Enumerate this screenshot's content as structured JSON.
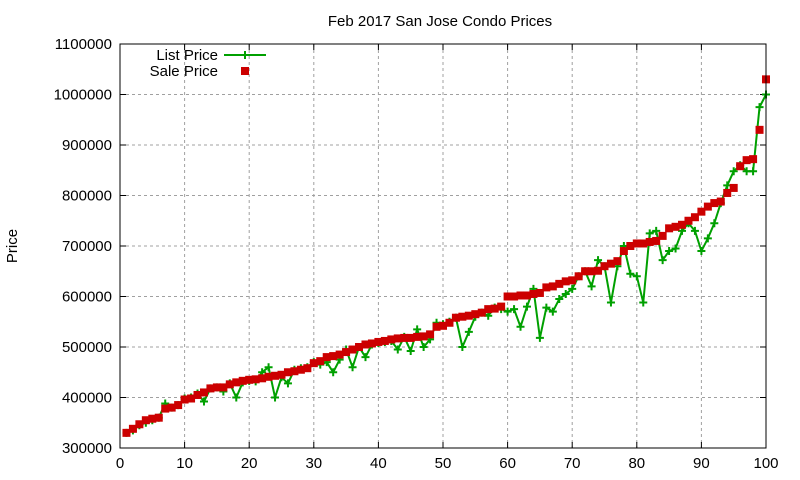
{
  "chart_data": {
    "type": "line",
    "title": "Feb 2017 San Jose Condo Prices",
    "xlabel": "",
    "ylabel": "Price",
    "xlim": [
      0,
      100
    ],
    "ylim": [
      300000,
      1100000
    ],
    "xticks": [
      0,
      10,
      20,
      30,
      40,
      50,
      60,
      70,
      80,
      90,
      100
    ],
    "yticks": [
      300000,
      400000,
      500000,
      600000,
      700000,
      800000,
      900000,
      1000000,
      1100000
    ],
    "grid": true,
    "legend_position": "top-left",
    "series": [
      {
        "name": "List Price",
        "style": "linespoints",
        "color": "#00a000",
        "x": [
          1,
          2,
          3,
          4,
          5,
          6,
          7,
          8,
          9,
          10,
          11,
          12,
          13,
          14,
          15,
          16,
          17,
          18,
          19,
          20,
          21,
          22,
          23,
          24,
          25,
          26,
          27,
          28,
          29,
          30,
          31,
          32,
          33,
          34,
          35,
          36,
          37,
          38,
          39,
          40,
          41,
          42,
          43,
          44,
          45,
          46,
          47,
          48,
          49,
          50,
          51,
          52,
          53,
          54,
          55,
          56,
          57,
          58,
          59,
          60,
          61,
          62,
          63,
          64,
          65,
          66,
          67,
          68,
          69,
          70,
          71,
          72,
          73,
          74,
          75,
          76,
          77,
          78,
          79,
          80,
          81,
          82,
          83,
          84,
          85,
          86,
          87,
          88,
          89,
          90,
          91,
          92,
          93,
          94,
          95,
          96,
          97,
          98,
          99,
          100
        ],
        "values": [
          330000,
          335000,
          345000,
          350000,
          355000,
          360000,
          388000,
          380000,
          385000,
          398000,
          400000,
          408000,
          392000,
          418000,
          420000,
          412000,
          428000,
          400000,
          430000,
          433000,
          432000,
          450000,
          460000,
          400000,
          440000,
          428000,
          455000,
          458000,
          460000,
          470000,
          465000,
          470000,
          450000,
          475000,
          495000,
          460000,
          500000,
          480000,
          505000,
          508000,
          510000,
          512000,
          495000,
          520000,
          492000,
          535000,
          500000,
          515000,
          548000,
          545000,
          550000,
          558000,
          500000,
          530000,
          560000,
          568000,
          562000,
          578000,
          575000,
          570000,
          575000,
          540000,
          580000,
          615000,
          518000,
          578000,
          570000,
          595000,
          605000,
          615000,
          640000,
          650000,
          620000,
          672000,
          660000,
          588000,
          660000,
          700000,
          645000,
          640000,
          588000,
          725000,
          730000,
          672000,
          690000,
          695000,
          730000,
          745000,
          730000,
          690000,
          715000,
          745000,
          785000,
          820000,
          848000,
          860000,
          848000,
          848000,
          975000,
          1000000
        ]
      },
      {
        "name": "Sale Price",
        "style": "points",
        "color": "#cc0000",
        "x": [
          1,
          2,
          3,
          4,
          5,
          6,
          7,
          8,
          9,
          10,
          11,
          12,
          13,
          14,
          15,
          16,
          17,
          18,
          19,
          20,
          21,
          22,
          23,
          24,
          25,
          26,
          27,
          28,
          29,
          30,
          31,
          32,
          33,
          34,
          35,
          36,
          37,
          38,
          39,
          40,
          41,
          42,
          43,
          44,
          45,
          46,
          47,
          48,
          49,
          50,
          51,
          52,
          53,
          54,
          55,
          56,
          57,
          58,
          59,
          60,
          61,
          62,
          63,
          64,
          65,
          66,
          67,
          68,
          69,
          70,
          71,
          72,
          73,
          74,
          75,
          76,
          77,
          78,
          79,
          80,
          81,
          82,
          83,
          84,
          85,
          86,
          87,
          88,
          89,
          90,
          91,
          92,
          93,
          94,
          95,
          96,
          97,
          98,
          99,
          100
        ],
        "values": [
          330000,
          338000,
          347000,
          355000,
          358000,
          360000,
          378000,
          380000,
          385000,
          396000,
          398000,
          405000,
          410000,
          418000,
          420000,
          420000,
          426000,
          430000,
          433000,
          435000,
          436000,
          438000,
          441000,
          443000,
          445000,
          450000,
          452000,
          455000,
          458000,
          468000,
          472000,
          480000,
          482000,
          485000,
          490000,
          495000,
          500000,
          505000,
          507000,
          510000,
          512000,
          515000,
          517000,
          518000,
          518000,
          520000,
          521000,
          525000,
          540000,
          542000,
          548000,
          558000,
          560000,
          562000,
          565000,
          568000,
          575000,
          576000,
          580000,
          600000,
          600000,
          602000,
          602000,
          605000,
          607000,
          618000,
          620000,
          625000,
          630000,
          632000,
          640000,
          650000,
          650000,
          651000,
          660000,
          665000,
          670000,
          690000,
          700000,
          705000,
          705000,
          708000,
          710000,
          720000,
          735000,
          738000,
          742000,
          750000,
          757000,
          768000,
          778000,
          785000,
          788000,
          805000,
          815000,
          858000,
          870000,
          872000,
          930000,
          1030000
        ]
      }
    ]
  }
}
